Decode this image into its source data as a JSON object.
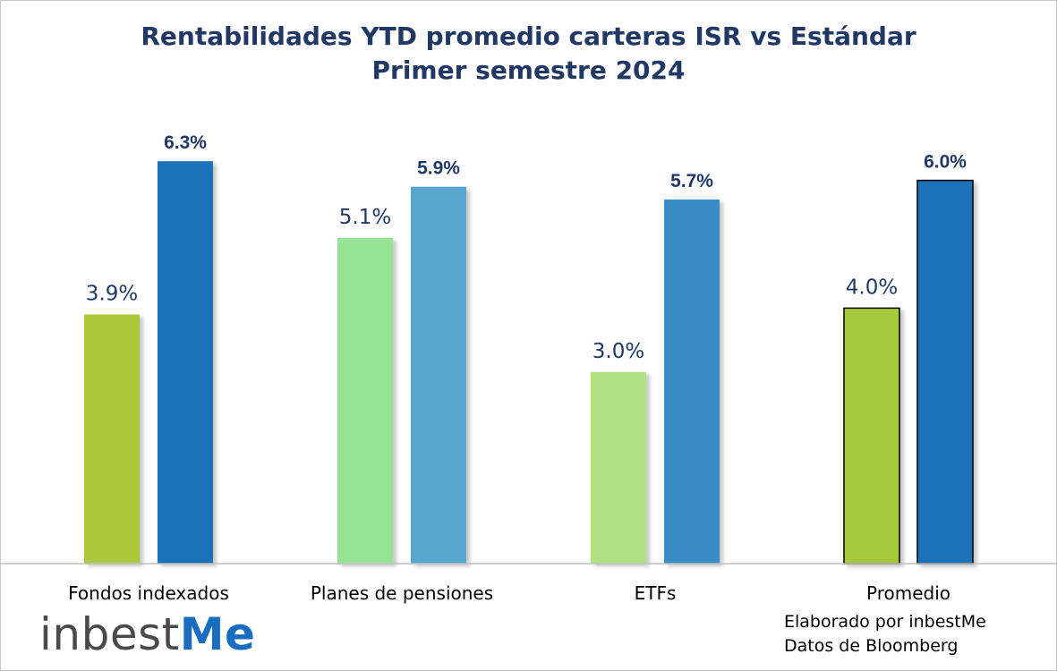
{
  "chart_data": {
    "type": "bar",
    "title": "Rentabilidades YTD promedio carteras ISR vs Estándar",
    "subtitle": "Primer semestre 2024",
    "categories": [
      "Fondos indexados",
      "Planes de pensiones",
      "ETFs",
      "Promedio"
    ],
    "series": [
      {
        "values": [
          3.9,
          5.1,
          3.0,
          4.0
        ],
        "labels": [
          "3.9%",
          "5.1%",
          "3.0%",
          "4.0%"
        ]
      },
      {
        "values": [
          6.3,
          5.9,
          5.7,
          6.0
        ],
        "labels": [
          "6.3%",
          "5.9%",
          "5.7%",
          "6.0%"
        ]
      }
    ],
    "bar_colors": [
      [
        "#a9c93a",
        "#1a72b8"
      ],
      [
        "#96e395",
        "#57a6cf"
      ],
      [
        "#b0e283",
        "#3a8cc4"
      ],
      [
        "#a6c93a",
        "#1a72b8"
      ]
    ],
    "ylim": [
      0,
      8.2
    ],
    "grid": false,
    "legend": "none"
  },
  "branding": {
    "logo_prefix": "inbest",
    "logo_suffix": "Me",
    "credit_line1": "Elaborado por inbestMe",
    "credit_line2": "Datos de Bloomberg"
  }
}
